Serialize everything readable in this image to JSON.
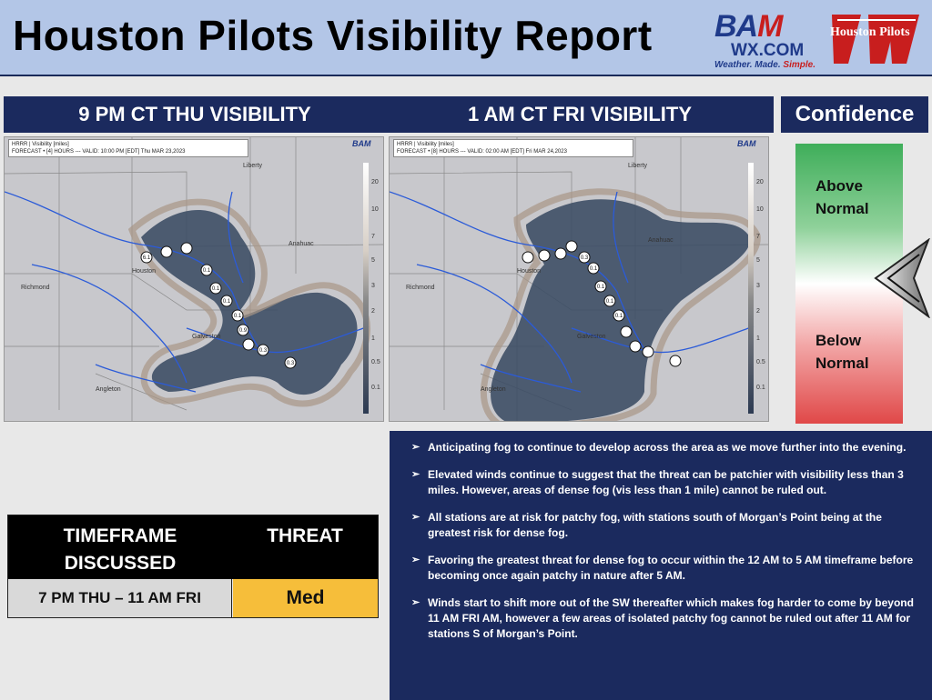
{
  "header": {
    "title": "Houston Pilots Visibility Report",
    "bam_logo": {
      "main_1": "BA",
      "main_2": "M",
      "sub": "WX.COM",
      "tagline_1": "Weather. Made. ",
      "tagline_2": "Simple."
    },
    "partner_logo": "Houston Pilots"
  },
  "banners": {
    "left": "9 PM CT THU VISIBILITY",
    "middle": "1 AM CT FRI VISIBILITY",
    "confidence": "Confidence"
  },
  "maps": [
    {
      "model": "HRRR | Visibility [miles]",
      "forecast": "FORECAST • [4] HOURS --- VALID: 10:00 PM [EDT] Thu MAR 23,2023",
      "places": [
        "Liberty",
        "Anahuac",
        "Houston",
        "Richmond",
        "Galveston",
        "Angleton"
      ],
      "station_values": [
        "6.1",
        "0.1",
        "0.1",
        "0.1",
        "0.1",
        "0.9",
        "0.3",
        "0.3"
      ]
    },
    {
      "model": "HRRR | Visibility [miles]",
      "forecast": "FORECAST • [8] HOURS --- VALID: 02:00 AM [EDT] Fri MAR 24,2023",
      "places": [
        "Liberty",
        "Anahuac",
        "Houston",
        "Richmond",
        "Galveston",
        "Angleton"
      ],
      "station_values": [
        "0.3",
        "0.1",
        "0.1",
        "0.1",
        "0.1"
      ]
    }
  ],
  "scale_labels": [
    "20",
    "10",
    "7",
    "5",
    "3",
    "2",
    "1",
    "0.5",
    "0.1"
  ],
  "confidence": {
    "above": [
      "Above",
      "Normal"
    ],
    "below": [
      "Below",
      "Normal"
    ]
  },
  "threat_table": {
    "header_timeframe": [
      "TIMEFRAME",
      "DISCUSSED"
    ],
    "header_threat": "THREAT",
    "timeframe": "7 PM THU – 11 AM FRI",
    "threat": "Med",
    "threat_color": "#f6be3a"
  },
  "bullets": [
    "Anticipating fog to continue to develop across the area as we move further into the evening.",
    "Elevated winds continue to suggest that the threat can be patchier with visibility less than 3 miles.  However, areas of dense fog (vis less than 1 mile) cannot be ruled out.",
    "All stations are at risk for patchy fog, with stations south of Morgan’s Point being at the greatest risk for dense fog.",
    "Favoring the greatest threat for dense fog to occur within the 12 AM to 5 AM timeframe before becoming once again patchy in nature after 5 AM.",
    "Winds start to shift more out of the SW thereafter which makes fog harder to come by beyond 11 AM FRI AM, however a few areas of isolated patchy fog cannot be ruled out after 11 AM for stations S of Morgan’s Point."
  ],
  "colors": {
    "navy": "#1b2a5e",
    "header_bg": "#b3c6e7",
    "fog": "#3a4b63",
    "water": "#2b5bd8"
  }
}
